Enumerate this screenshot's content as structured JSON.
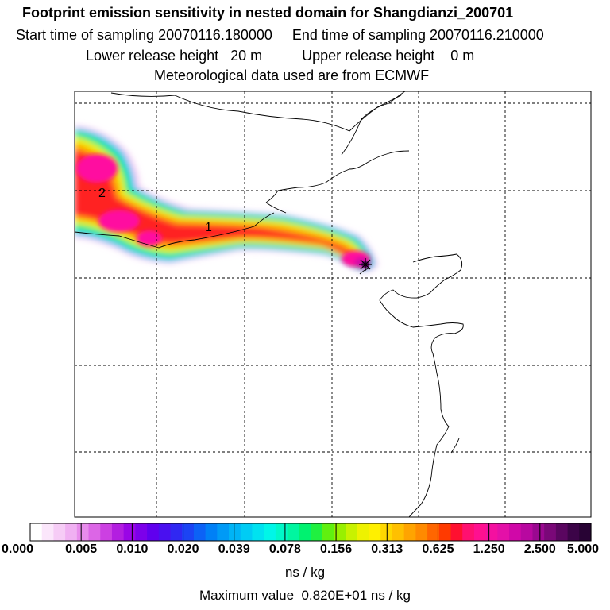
{
  "header": {
    "title": "Footprint emission sensitivity in nested domain for Shangdianzi_200701",
    "sampling_line": "Start time of sampling 20070116.180000     End time of sampling 20070116.210000",
    "release_line": "Lower release height   20 m          Upper release height    0 m",
    "met_line": "Meteorological data used are from ECMWF"
  },
  "map": {
    "contour_labels": [
      "1",
      "2"
    ],
    "receptor_icon": "star-marker-icon"
  },
  "colorbar": {
    "tick_labels": [
      "0.000",
      "0.005",
      "0.010",
      "0.020",
      "0.039",
      "0.078",
      "0.156",
      "0.313",
      "0.625",
      "1.250",
      "2.500",
      "5.000"
    ],
    "colors": [
      "#ffffff",
      "#fbe6fb",
      "#f6ccf6",
      "#f0b0f2",
      "#e88cec",
      "#dc66e6",
      "#cc40e2",
      "#b31ee0",
      "#9a05e6",
      "#7c00ea",
      "#6000ee",
      "#4a10f0",
      "#3028f2",
      "#1c44f4",
      "#0c62f6",
      "#0080f6",
      "#009af6",
      "#00b4f6",
      "#00ccf4",
      "#00e2f0",
      "#00f6e8",
      "#00f8c8",
      "#00f6a0",
      "#00f270",
      "#20f040",
      "#60f010",
      "#98f000",
      "#c8f200",
      "#eef200",
      "#fff000",
      "#ffd800",
      "#ffc000",
      "#ffa400",
      "#ff8a00",
      "#ff6600",
      "#ff3a00",
      "#ff1030",
      "#ff1070",
      "#ff1090",
      "#f410a0",
      "#e410a8",
      "#d008a8",
      "#b808a0",
      "#9a0890",
      "#7a0878",
      "#5a0660",
      "#3c0448",
      "#280334"
    ],
    "units": "ns / kg",
    "max_value_text": "Maximum value  0.820E+01 ns / kg"
  }
}
